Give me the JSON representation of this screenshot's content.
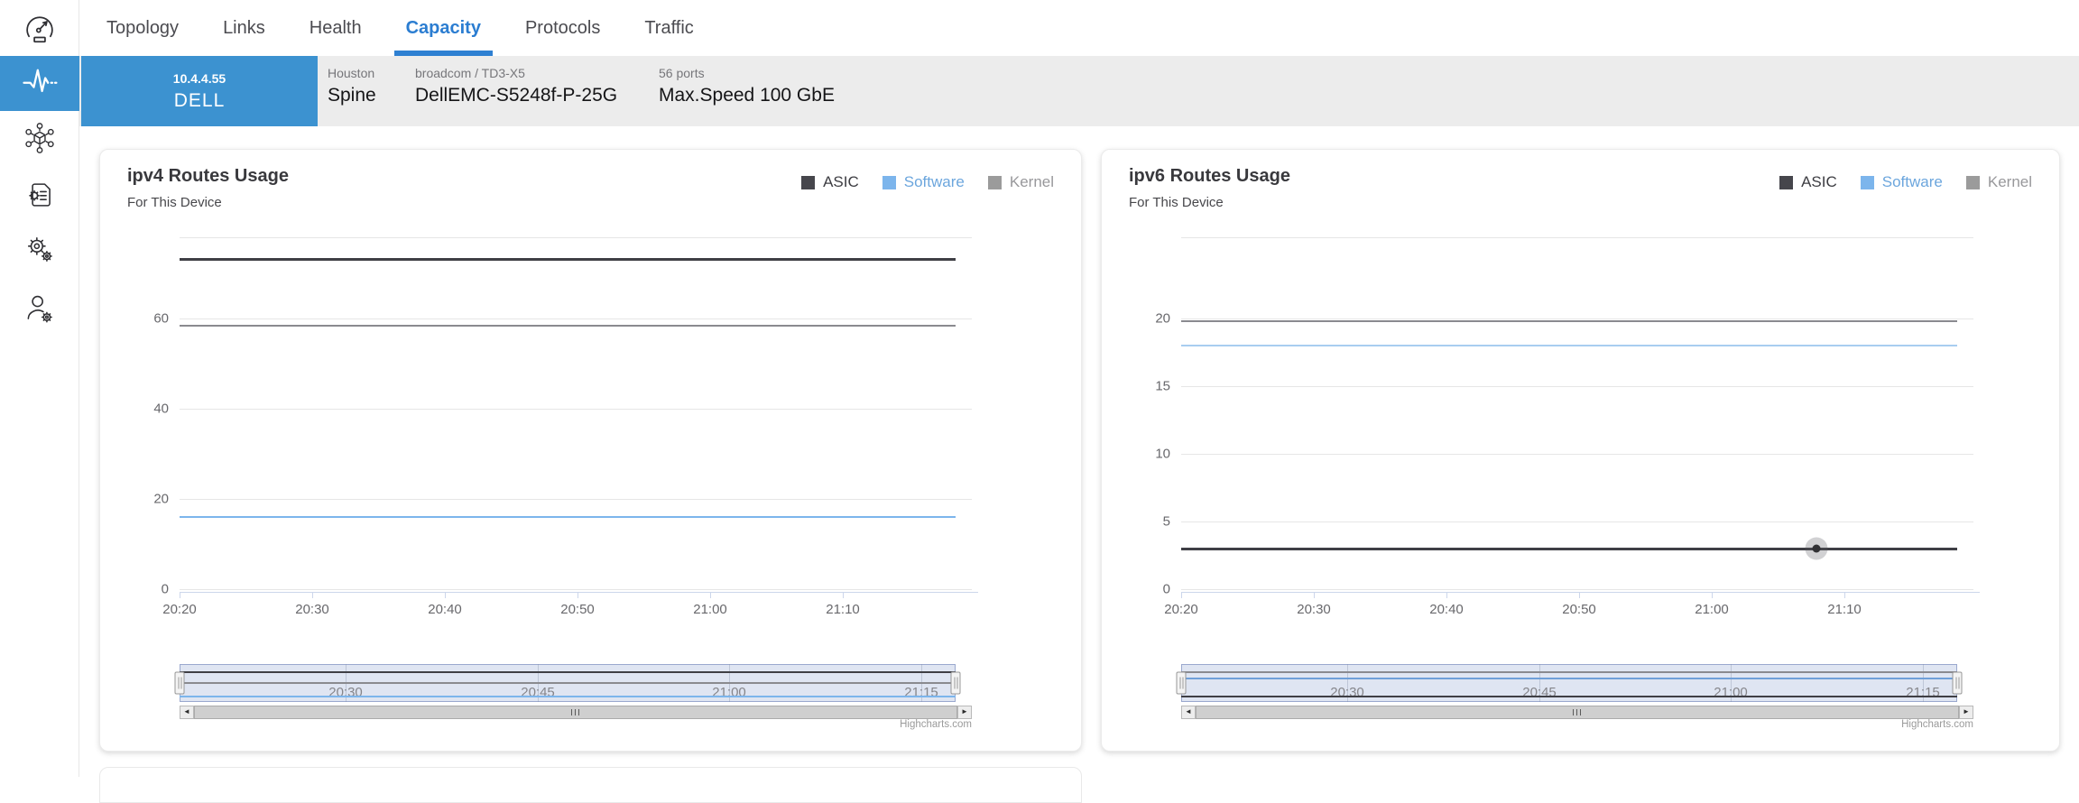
{
  "nav": {
    "tabs": [
      {
        "label": "Topology"
      },
      {
        "label": "Links"
      },
      {
        "label": "Health"
      },
      {
        "label": "Capacity"
      },
      {
        "label": "Protocols"
      },
      {
        "label": "Traffic"
      }
    ],
    "active_tab": "Capacity"
  },
  "sidebar": {
    "items": [
      {
        "icon": "gauge-logo",
        "active": false
      },
      {
        "icon": "activity",
        "active": true
      },
      {
        "icon": "topology-cluster",
        "active": false
      },
      {
        "icon": "document-settings",
        "active": false
      },
      {
        "icon": "settings-gears",
        "active": false
      },
      {
        "icon": "user-settings",
        "active": false
      }
    ]
  },
  "device_bar": {
    "ip": "10.4.4.55",
    "name": "DELL",
    "site": "Houston",
    "role": "Spine",
    "platform_label": "broadcom / TD3-X5",
    "model": "DellEMC-S5248f-P-25G",
    "ports_label": "56 ports",
    "speed": "Max.Speed 100 GbE"
  },
  "colors": {
    "accent_blue": "#2e80d2",
    "tile_blue": "#3c92d0",
    "bar_gray": "#ececec",
    "asic": "#3f3f45",
    "software": "#7cb5ec",
    "kernel": "#9b9b9b"
  },
  "chart_data": [
    {
      "type": "line",
      "title": "ipv4 Routes Usage",
      "subtitle": "For This Device",
      "xlabel": "",
      "ylabel": "",
      "ylim": [
        0,
        78
      ],
      "y_ticks": [
        0,
        20,
        40,
        60
      ],
      "x_ticks": [
        "20:20",
        "20:30",
        "20:40",
        "20:50",
        "21:00",
        "21:10"
      ],
      "grid": true,
      "legend_position": "top-right",
      "legend": [
        {
          "name": "ASIC",
          "color": "#46464c",
          "text_color": "#3d3d42"
        },
        {
          "name": "Software",
          "color": "#7cb5ec",
          "text_color": "#6ca6dd"
        },
        {
          "name": "Kernel",
          "color": "#9b9b9b",
          "text_color": "#98989b"
        }
      ],
      "series": [
        {
          "name": "ASIC",
          "value": 73,
          "color": "#3f3f45",
          "thickness": 3
        },
        {
          "name": "Kernel",
          "value": 58.5,
          "color": "#8a8a8f",
          "thickness": 2
        },
        {
          "name": "Software",
          "value": 16,
          "color": "#7cb5ec",
          "thickness": 2
        }
      ],
      "navigator": {
        "labels": [
          "20:30",
          "20:45",
          "21:00",
          "21:15"
        ],
        "mini_lines": [
          {
            "name": "ASIC",
            "color": "#3f3f45",
            "top": 8
          },
          {
            "name": "Kernel",
            "color": "#8a8a8f",
            "top": 20
          },
          {
            "name": "Software",
            "color": "#7cb5ec",
            "top": 35
          }
        ]
      },
      "credit": "Highcharts.com"
    },
    {
      "type": "line",
      "title": "ipv6 Routes Usage",
      "subtitle": "For This Device",
      "xlabel": "",
      "ylabel": "",
      "ylim": [
        0,
        26
      ],
      "y_ticks": [
        0,
        5,
        10,
        15,
        20
      ],
      "x_ticks": [
        "20:20",
        "20:30",
        "20:40",
        "20:50",
        "21:00",
        "21:10"
      ],
      "grid": true,
      "legend_position": "top-right",
      "legend": [
        {
          "name": "ASIC",
          "color": "#46464c",
          "text_color": "#3d3d42"
        },
        {
          "name": "Software",
          "color": "#7cb5ec",
          "text_color": "#6ca6dd"
        },
        {
          "name": "Kernel",
          "color": "#9b9b9b",
          "text_color": "#98989b"
        }
      ],
      "series": [
        {
          "name": "Kernel",
          "value": 19.8,
          "color": "#8a8a8f",
          "thickness": 2
        },
        {
          "name": "Software",
          "value": 18,
          "color": "#a8cdf0",
          "thickness": 2
        },
        {
          "name": "ASIC",
          "value": 3,
          "color": "#3f3f45",
          "thickness": 3
        }
      ],
      "marker": {
        "series": "ASIC",
        "x_fraction": 0.802
      },
      "navigator": {
        "labels": [
          "20:30",
          "20:45",
          "21:00",
          "21:15"
        ],
        "mini_lines": [
          {
            "name": "Kernel",
            "color": "#8a8a8f",
            "top": 8
          },
          {
            "name": "Software",
            "color": "#6f9fd8",
            "top": 15
          },
          {
            "name": "ASIC",
            "color": "#3f3f45",
            "top": 35
          }
        ]
      },
      "credit": "Highcharts.com"
    }
  ]
}
